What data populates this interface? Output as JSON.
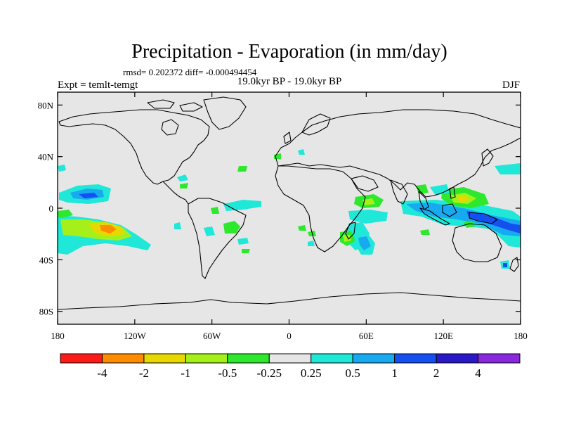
{
  "title": "Precipitation - Evaporation (in mm/day)",
  "stats_line": "rmsd= 0.202372  diff= -0.000494454",
  "period": "19.0kyr BP - 19.0kyr BP",
  "experiment": "Expt = temlt-temgt",
  "season": "DJF",
  "y_axis": {
    "ticks": [
      "80N",
      "40N",
      "0",
      "40S",
      "80S"
    ],
    "values": [
      80,
      40,
      0,
      -40,
      -80
    ]
  },
  "x_axis": {
    "ticks": [
      "180",
      "120W",
      "60W",
      "0",
      "60E",
      "120E",
      "180"
    ],
    "values": [
      -180,
      -120,
      -60,
      0,
      60,
      120,
      180
    ]
  },
  "colorbar": {
    "colors": [
      "#ff1a1a",
      "#ff8c00",
      "#e8d800",
      "#a6f01a",
      "#2ee82e",
      "#e5e5e5",
      "#1fe8d8",
      "#18aaf0",
      "#1450f0",
      "#2818c8",
      "#8a28e0"
    ],
    "labels": [
      "-4",
      "-2",
      "-1",
      "-0.5",
      "-0.25",
      "0.25",
      "0.5",
      "1",
      "2",
      "4"
    ]
  },
  "colors": {
    "ocean_land_bg": "#e6e6e6",
    "coast": "#000000"
  }
}
